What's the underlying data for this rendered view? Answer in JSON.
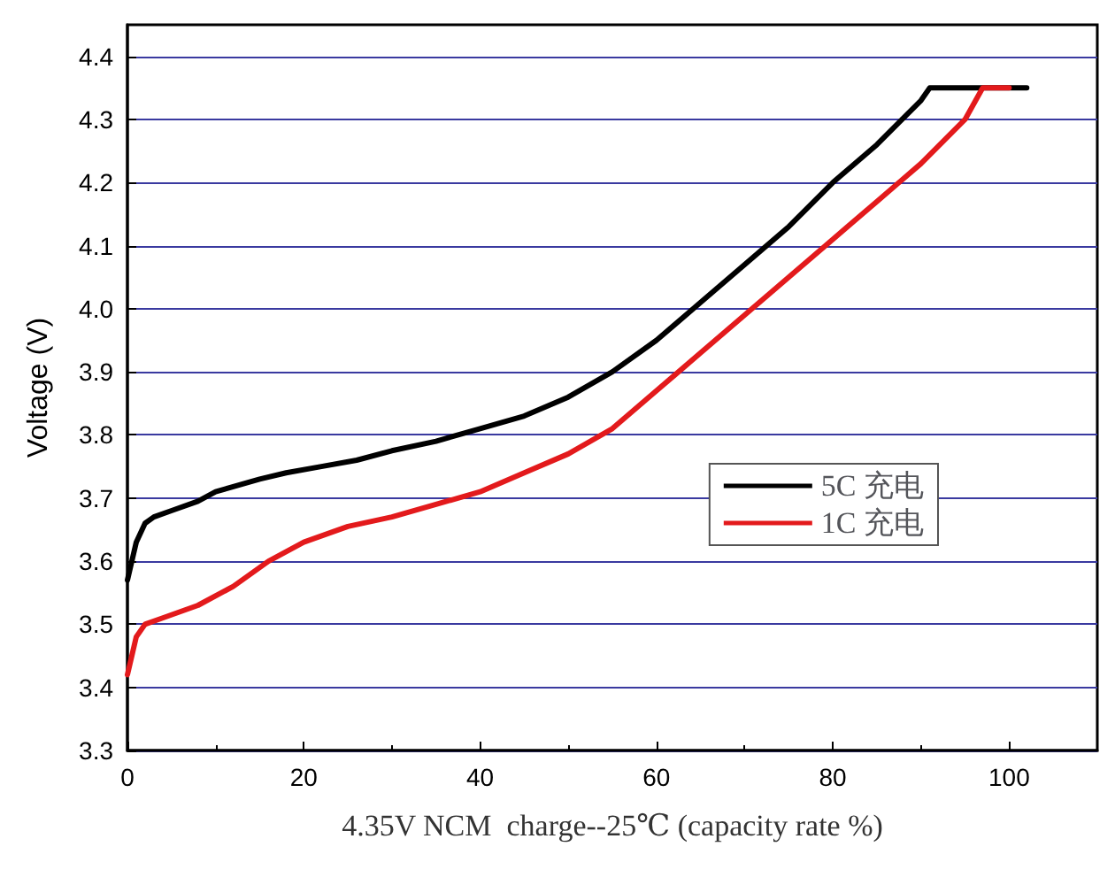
{
  "chart_data": {
    "type": "line",
    "xlabel": "4.35V NCM  charge--25℃ (capacity rate %)",
    "ylabel": "Voltage (V)",
    "xlim": [
      0,
      110
    ],
    "xticks": [
      0,
      20,
      40,
      60,
      80,
      100
    ],
    "ylim": [
      3.3,
      4.45
    ],
    "yticks": [
      3.3,
      3.4,
      3.5,
      3.6,
      3.7,
      3.8,
      3.9,
      {
        "value": 4,
        "label": "4.0"
      },
      4.1,
      4.2,
      4.3,
      4.4
    ],
    "grid": "y",
    "legend": "right",
    "marker": "none",
    "line_style": "solid",
    "series": [
      {
        "name": "5C 充电",
        "color": "#000000",
        "x": [
          0,
          0.5,
          1,
          2,
          3,
          5,
          8,
          10,
          15,
          18,
          22,
          26,
          30,
          35,
          40,
          45,
          50,
          55,
          60,
          65,
          70,
          75,
          80,
          85,
          90,
          91,
          95,
          102
        ],
        "values": [
          3.57,
          3.6,
          3.63,
          3.66,
          3.67,
          3.68,
          3.695,
          3.71,
          3.73,
          3.74,
          3.75,
          3.76,
          3.775,
          3.79,
          3.81,
          3.83,
          3.86,
          3.9,
          3.95,
          4.01,
          4.07,
          4.13,
          4.2,
          4.26,
          4.33,
          4.35,
          4.35,
          4.35
        ]
      },
      {
        "name": "1C 充电",
        "color": "#e31a1c",
        "x": [
          0,
          0.5,
          1,
          2,
          4,
          8,
          12,
          16,
          20,
          25,
          30,
          35,
          40,
          45,
          50,
          55,
          60,
          65,
          70,
          75,
          80,
          85,
          90,
          95,
          97,
          100
        ],
        "values": [
          3.42,
          3.45,
          3.48,
          3.5,
          3.51,
          3.53,
          3.56,
          3.6,
          3.63,
          3.655,
          3.67,
          3.69,
          3.71,
          3.74,
          3.77,
          3.81,
          3.87,
          3.93,
          3.99,
          4.05,
          4.11,
          4.17,
          4.23,
          4.3,
          4.35,
          4.35
        ]
      }
    ]
  }
}
